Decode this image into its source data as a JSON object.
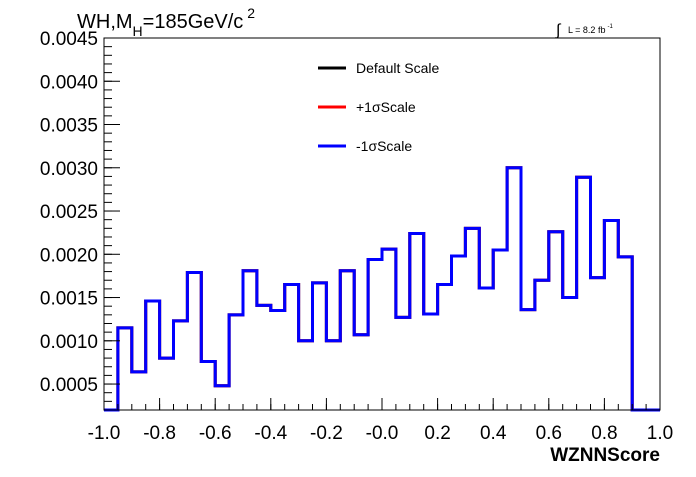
{
  "chart_data": {
    "type": "line",
    "title": "WH,M",
    "title_sub": "H",
    "title_rest": "=185GeV/c",
    "title_sup": "2",
    "lumi_prefix": "∫",
    "lumi_text": "L = 8.2 fb",
    "lumi_sup": "-1",
    "xlabel": "WZNNScore",
    "ylabel": "",
    "xlim": [
      -1.0,
      1.0
    ],
    "ylim": [
      0.0002,
      0.0045
    ],
    "xticks": [
      -1.0,
      -0.8,
      -0.6,
      -0.4,
      -0.2,
      0.0,
      0.2,
      0.4,
      0.6,
      0.8,
      1.0
    ],
    "xtick_labels": [
      "-1.0",
      "-0.8",
      "-0.6",
      "-0.4",
      "-0.2",
      "-0.0",
      "0.2",
      "0.4",
      "0.6",
      "0.8",
      "1.0"
    ],
    "yticks": [
      0.0005,
      0.001,
      0.0015,
      0.002,
      0.0025,
      0.003,
      0.0035,
      0.004,
      0.0045
    ],
    "ytick_labels": [
      "0.0005",
      "0.0010",
      "0.0015",
      "0.0020",
      "0.0025",
      "0.0030",
      "0.0035",
      "0.0040",
      "0.0045"
    ],
    "grid": false,
    "legend_position": "top-center",
    "bin_edges": [
      -1.0,
      -0.95,
      -0.9,
      -0.85,
      -0.8,
      -0.75,
      -0.7,
      -0.65,
      -0.6,
      -0.55,
      -0.5,
      -0.45,
      -0.4,
      -0.35,
      -0.3,
      -0.25,
      -0.2,
      -0.15,
      -0.1,
      -0.05,
      0.0,
      0.05,
      0.1,
      0.15,
      0.2,
      0.25,
      0.3,
      0.35,
      0.4,
      0.45,
      0.5,
      0.55,
      0.6,
      0.65,
      0.7,
      0.75,
      0.8,
      0.85,
      0.9,
      0.95,
      1.0
    ],
    "series": [
      {
        "name": "Default Scale",
        "color": "#000000",
        "values": [
          0.0002,
          0.00115,
          0.00064,
          0.00146,
          0.0008,
          0.00123,
          0.00179,
          0.00076,
          0.00048,
          0.0013,
          0.00181,
          0.00141,
          0.00135,
          0.00165,
          0.001,
          0.00167,
          0.001,
          0.00181,
          0.00107,
          0.00194,
          0.00206,
          0.00127,
          0.00224,
          0.00131,
          0.00165,
          0.00198,
          0.0023,
          0.00161,
          0.00205,
          0.003,
          0.00136,
          0.0017,
          0.00226,
          0.0015,
          0.00289,
          0.00173,
          0.00239,
          0.00197,
          0.0002,
          0.0002
        ]
      },
      {
        "name": "+1σScale",
        "color": "#ff0000",
        "values": [
          0.0002,
          0.00115,
          0.00064,
          0.00146,
          0.0008,
          0.00123,
          0.00179,
          0.00076,
          0.00048,
          0.0013,
          0.00181,
          0.00141,
          0.00135,
          0.00165,
          0.001,
          0.00167,
          0.001,
          0.00181,
          0.00107,
          0.00194,
          0.00206,
          0.00127,
          0.00224,
          0.00131,
          0.00165,
          0.00198,
          0.0023,
          0.00161,
          0.00205,
          0.003,
          0.00136,
          0.0017,
          0.00226,
          0.0015,
          0.00289,
          0.00173,
          0.00239,
          0.00197,
          0.0002,
          0.0002
        ]
      },
      {
        "name": "-1σScale",
        "color": "#0000ff",
        "values": [
          0.0002,
          0.00115,
          0.00064,
          0.00146,
          0.0008,
          0.00123,
          0.00179,
          0.00076,
          0.00048,
          0.0013,
          0.00181,
          0.00141,
          0.00135,
          0.00165,
          0.001,
          0.00167,
          0.001,
          0.00181,
          0.00107,
          0.00194,
          0.00206,
          0.00127,
          0.00224,
          0.00131,
          0.00165,
          0.00198,
          0.0023,
          0.00161,
          0.00205,
          0.003,
          0.00136,
          0.0017,
          0.00226,
          0.0015,
          0.00289,
          0.00173,
          0.00239,
          0.00197,
          0.0002,
          0.0002
        ]
      }
    ]
  }
}
